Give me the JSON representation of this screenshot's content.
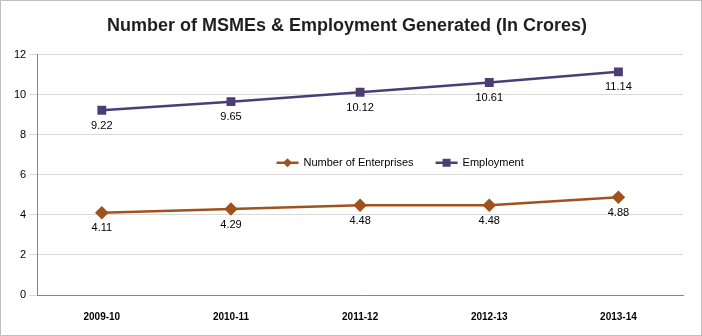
{
  "chart_data": {
    "type": "line",
    "title": "Number of MSMEs & Employment Generated (In Crores)",
    "categories": [
      "2009-10",
      "2010-11",
      "2011-12",
      "2012-13",
      "2013-14"
    ],
    "series": [
      {
        "name": "Number of Enterprises",
        "color": "#a0521e",
        "marker": "diamond",
        "values": [
          4.11,
          4.29,
          4.48,
          4.48,
          4.88
        ]
      },
      {
        "name": "Employment",
        "color": "#4d3d75",
        "marker": "square",
        "values": [
          9.22,
          9.65,
          10.12,
          10.61,
          11.14
        ]
      }
    ],
    "ylim": [
      0,
      12
    ],
    "yticks": [
      0,
      2,
      4,
      6,
      8,
      10,
      12
    ],
    "grid": true,
    "legend": "center",
    "data_labels": true
  }
}
